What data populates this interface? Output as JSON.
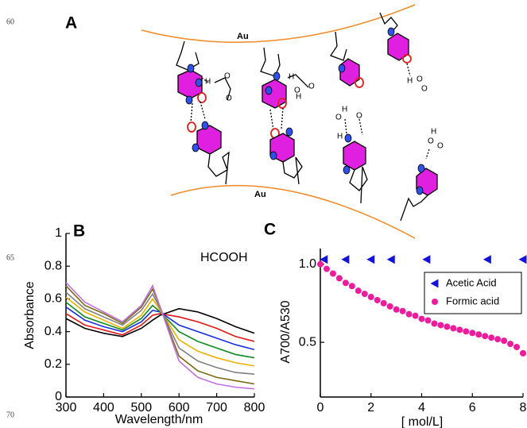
{
  "line_numbers": [
    "60",
    "65",
    "70"
  ],
  "panel_a": {
    "label": "A",
    "gold_labels": [
      "Au",
      "Au"
    ],
    "atom_labels": [
      "H",
      "O",
      "O",
      "H",
      "O",
      "O",
      "H",
      "O",
      "H",
      "O",
      "H",
      "H",
      "O",
      "O",
      "H",
      "O",
      "O"
    ]
  },
  "chart_data": [
    {
      "type": "line",
      "panel_label": "B",
      "annotation": "HCOOH",
      "xlabel": "Wavelength/nm",
      "ylabel": "Absorbance",
      "x": [
        300,
        350,
        400,
        450,
        500,
        530,
        550,
        600,
        650,
        700,
        750,
        800
      ],
      "xlim": [
        300,
        800
      ],
      "ylim": [
        0,
        1
      ],
      "xticks": [
        300,
        400,
        500,
        600,
        700,
        800
      ],
      "yticks": [
        0,
        0.2,
        0.4,
        0.6,
        0.8,
        1
      ],
      "series": [
        {
          "color": "#000000",
          "values": [
            0.48,
            0.42,
            0.39,
            0.37,
            0.42,
            0.47,
            0.5,
            0.54,
            0.52,
            0.48,
            0.43,
            0.39
          ]
        },
        {
          "color": "#e01818",
          "values": [
            0.51,
            0.44,
            0.41,
            0.38,
            0.44,
            0.5,
            0.51,
            0.49,
            0.46,
            0.42,
            0.37,
            0.34
          ]
        },
        {
          "color": "#1830e0",
          "values": [
            0.55,
            0.47,
            0.43,
            0.4,
            0.46,
            0.53,
            0.52,
            0.44,
            0.4,
            0.36,
            0.32,
            0.29
          ]
        },
        {
          "color": "#108a20",
          "values": [
            0.58,
            0.49,
            0.45,
            0.41,
            0.48,
            0.56,
            0.52,
            0.4,
            0.34,
            0.3,
            0.26,
            0.24
          ]
        },
        {
          "color": "#f0b000",
          "values": [
            0.61,
            0.52,
            0.47,
            0.42,
            0.5,
            0.6,
            0.53,
            0.35,
            0.28,
            0.24,
            0.21,
            0.19
          ]
        },
        {
          "color": "#808080",
          "values": [
            0.64,
            0.54,
            0.49,
            0.44,
            0.53,
            0.63,
            0.54,
            0.3,
            0.22,
            0.18,
            0.15,
            0.14
          ]
        },
        {
          "color": "#7a6a10",
          "values": [
            0.68,
            0.56,
            0.51,
            0.45,
            0.55,
            0.66,
            0.55,
            0.25,
            0.16,
            0.12,
            0.1,
            0.08
          ]
        },
        {
          "color": "#c070e0",
          "values": [
            0.7,
            0.58,
            0.52,
            0.46,
            0.56,
            0.68,
            0.55,
            0.22,
            0.12,
            0.08,
            0.06,
            0.05
          ]
        }
      ]
    },
    {
      "type": "scatter",
      "panel_label": "C",
      "xlabel": "[ mol/L]",
      "ylabel": "A700/A530",
      "xlim": [
        0,
        8
      ],
      "ylim": [
        0.15,
        1.1
      ],
      "xticks": [
        0,
        2,
        4,
        6,
        8
      ],
      "yticks": [
        0.5,
        {
          "value": 1,
          "label": "1.0"
        }
      ],
      "legend": "upper right",
      "series": [
        {
          "name": "Acetic Acid",
          "color": "#1414d8",
          "marker": "triangle",
          "x": [
            0.15,
            1,
            2,
            2.8,
            4.2,
            6.6,
            8
          ],
          "values": [
            1.03,
            1.03,
            1.03,
            1.03,
            1.03,
            1.03,
            1.03
          ]
        },
        {
          "name": "Formic acid",
          "color": "#ec1c9c",
          "marker": "circle",
          "x": [
            0,
            0.25,
            0.5,
            0.75,
            1,
            1.25,
            1.5,
            1.75,
            2,
            2.25,
            2.5,
            2.75,
            3,
            3.25,
            3.5,
            3.75,
            4,
            4.25,
            4.5,
            4.75,
            5,
            5.25,
            5.5,
            5.75,
            6,
            6.25,
            6.5,
            6.75,
            7,
            7.25,
            7.5,
            7.75,
            8
          ],
          "values": [
            1.0,
            0.97,
            0.94,
            0.91,
            0.88,
            0.86,
            0.83,
            0.81,
            0.79,
            0.77,
            0.75,
            0.73,
            0.71,
            0.7,
            0.68,
            0.67,
            0.65,
            0.64,
            0.62,
            0.61,
            0.6,
            0.59,
            0.58,
            0.57,
            0.56,
            0.55,
            0.54,
            0.53,
            0.52,
            0.51,
            0.49,
            0.47,
            0.43
          ]
        }
      ]
    }
  ]
}
